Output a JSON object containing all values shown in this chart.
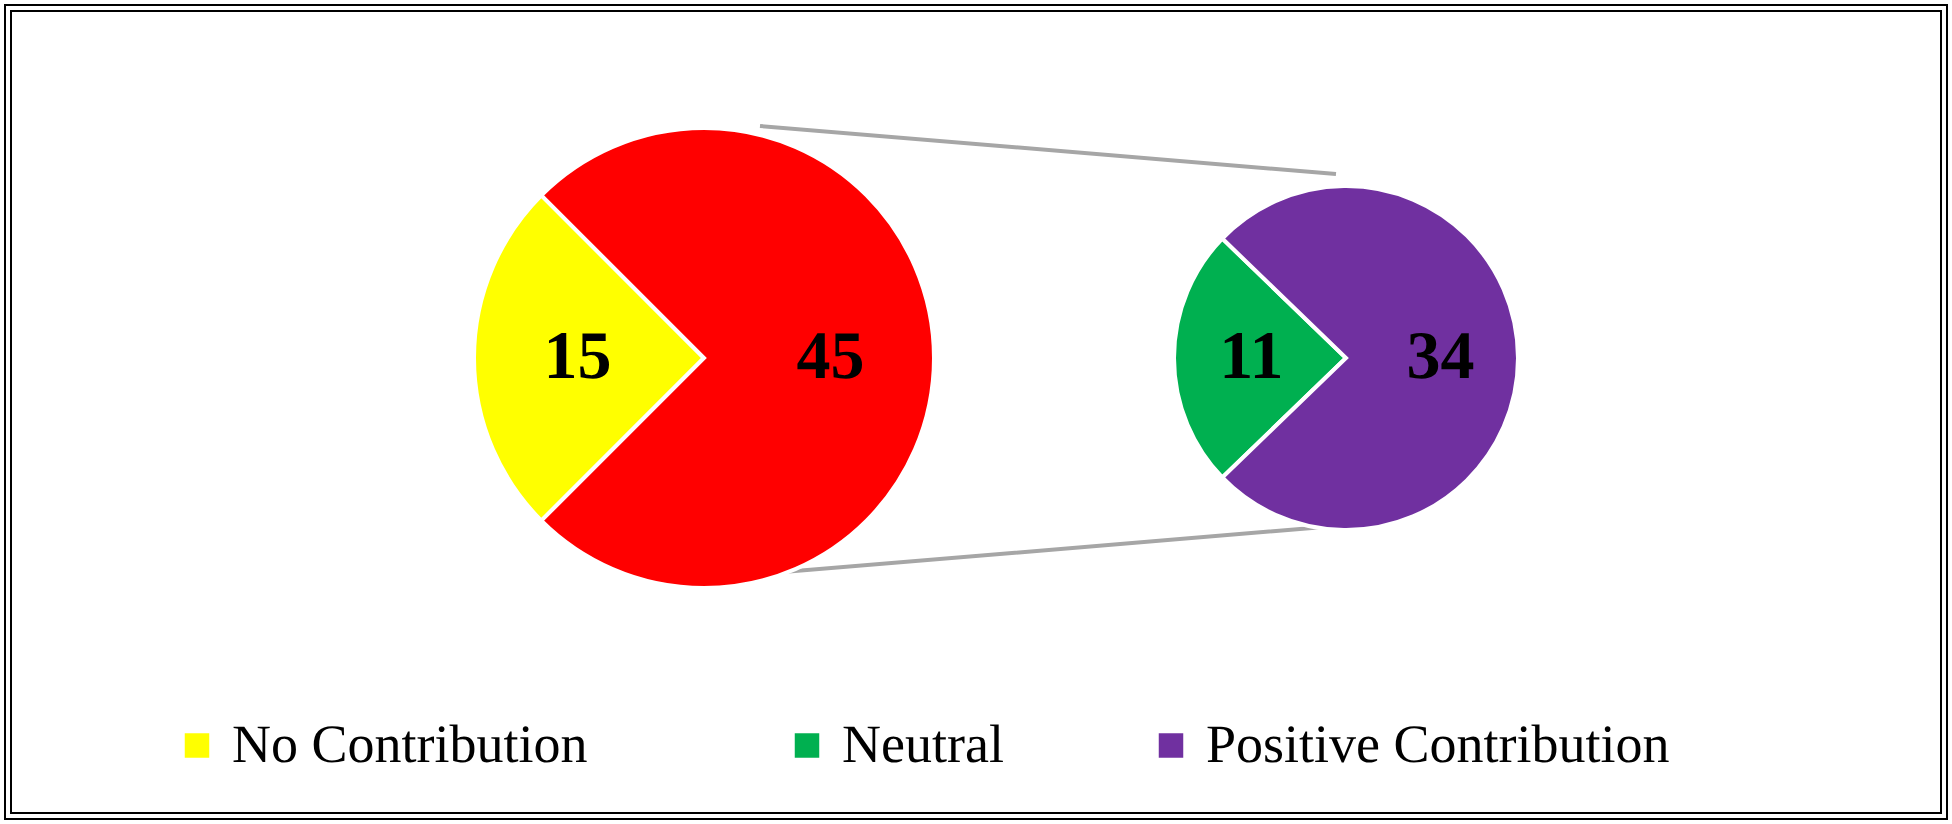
{
  "chart_data": [
    {
      "type": "pie",
      "categories": [
        "No Contribution",
        null
      ],
      "values": [
        15,
        45
      ],
      "colors": [
        "#ffff00",
        "#ff0000"
      ],
      "data_labels": true,
      "legend": "bottom"
    },
    {
      "type": "pie",
      "categories": [
        "Neutral",
        "Positive Contribution"
      ],
      "values": [
        11,
        34
      ],
      "colors": [
        "#00b050",
        "#7030a0"
      ],
      "data_labels": true,
      "legend": "bottom"
    }
  ]
}
